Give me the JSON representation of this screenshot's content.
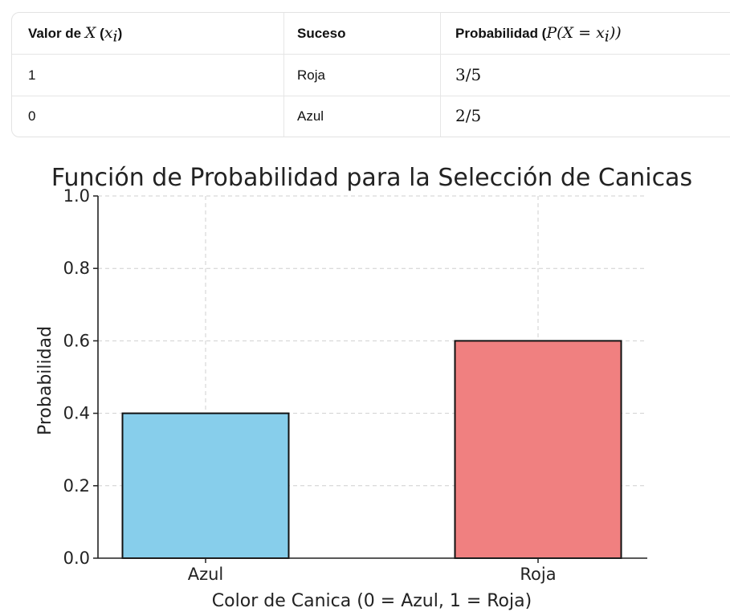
{
  "table": {
    "headers": {
      "col1_prefix": "Valor de ",
      "col1_var": "X",
      "col1_sym": "x",
      "col1_sub": "i",
      "col2": "Suceso",
      "col3_prefix": "Probabilidad (",
      "col3_math": "P(X = x",
      "col3_sub": "i",
      "col3_suffix": "))"
    },
    "rows": [
      {
        "value": "1",
        "event": "Roja",
        "prob": "3/5"
      },
      {
        "value": "0",
        "event": "Azul",
        "prob": "2/5"
      }
    ]
  },
  "chart_data": {
    "type": "bar",
    "title": "Función de Probabilidad para la Selección de Canicas",
    "xlabel": "Color de Canica (0 = Azul, 1 = Roja)",
    "ylabel": "Probabilidad",
    "categories": [
      "Azul",
      "Roja"
    ],
    "values": [
      0.4,
      0.6
    ],
    "colors": [
      "#87CEEB",
      "#F08080"
    ],
    "ylim": [
      0,
      1.0
    ],
    "yticks": [
      "0.0",
      "0.2",
      "0.4",
      "0.6",
      "0.8",
      "1.0"
    ],
    "grid": true
  }
}
